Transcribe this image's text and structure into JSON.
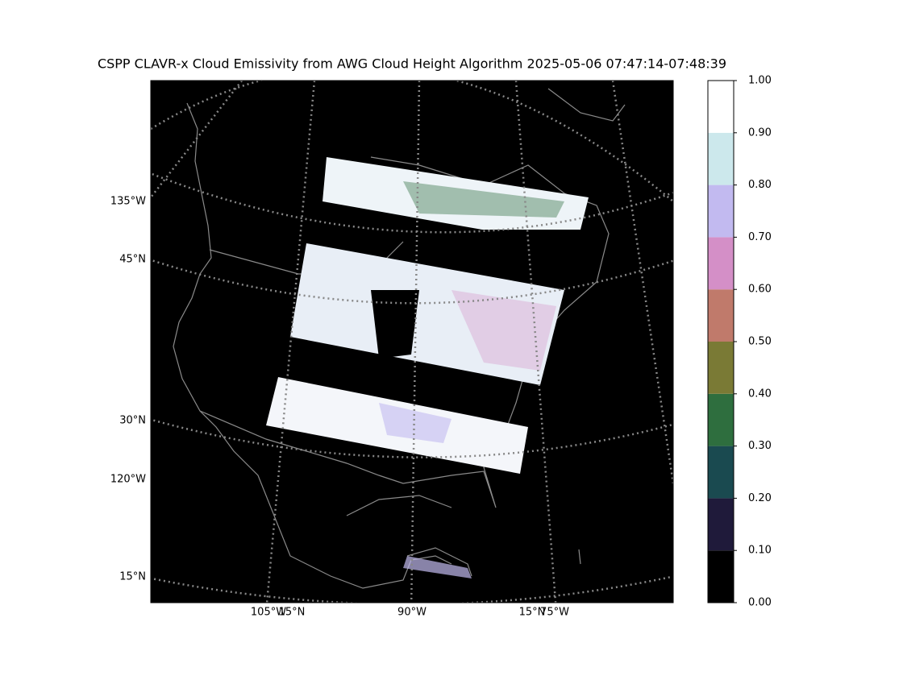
{
  "title": "CSPP CLAVR-x Cloud Emissivity from AWG Cloud Height Algorithm 2025-05-06 07:47:14-07:48:39",
  "map": {
    "left_labels": [
      "135°W",
      "45°N",
      "30°N",
      "120°W",
      "15°N"
    ],
    "bottom_labels": [
      "105°W",
      "15°N",
      "90°W",
      "15°N",
      "75°W"
    ]
  },
  "colorbar": {
    "lim": [
      0,
      1
    ],
    "ticks": [
      {
        "value": 0,
        "label": "0.00"
      },
      {
        "value": 0.1,
        "label": "0.10"
      },
      {
        "value": 0.2,
        "label": "0.20"
      },
      {
        "value": 0.3,
        "label": "0.30"
      },
      {
        "value": 0.4,
        "label": "0.40"
      },
      {
        "value": 0.5,
        "label": "0.50"
      },
      {
        "value": 0.6,
        "label": "0.60"
      },
      {
        "value": 0.7,
        "label": "0.70"
      },
      {
        "value": 0.8,
        "label": "0.80"
      },
      {
        "value": 0.9,
        "label": "0.90"
      },
      {
        "value": 1,
        "label": "1.00"
      }
    ],
    "colors": [
      "#000000",
      "#1f1a3a",
      "#1a4a50",
      "#2e6e3e",
      "#7a7a35",
      "#c07a6b",
      "#d48fc7",
      "#c2baf0",
      "#cce8ec",
      "#ffffff"
    ]
  }
}
